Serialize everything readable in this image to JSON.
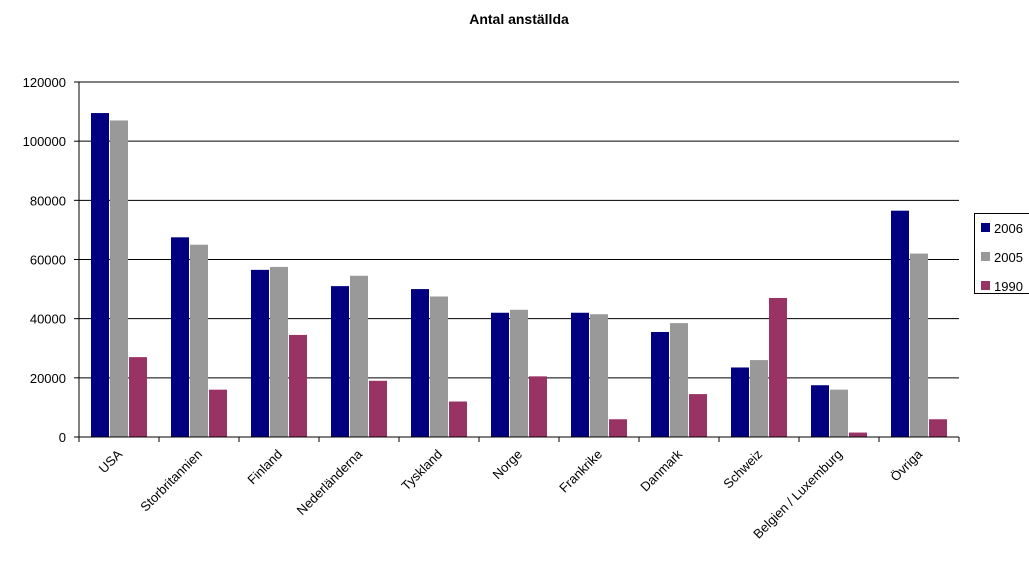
{
  "chart_data": {
    "type": "bar",
    "title": "Antal anställda",
    "xlabel": "",
    "ylabel": "",
    "ylim": [
      0,
      120000
    ],
    "yticks": [
      0,
      20000,
      40000,
      60000,
      80000,
      100000,
      120000
    ],
    "grid": true,
    "legend_position": "right",
    "categories": [
      "USA",
      "Storbritannien",
      "Finland",
      "Nederländerna",
      "Tyskland",
      "Norge",
      "Frankrike",
      "Danmark",
      "Schweiz",
      "Belgien / Luxemburg",
      "Övriga"
    ],
    "series": [
      {
        "name": "2006",
        "color": "#000080",
        "values": [
          109500,
          67500,
          56500,
          51000,
          50000,
          42000,
          42000,
          35500,
          23500,
          17500,
          76500
        ]
      },
      {
        "name": "2005",
        "color": "#999999",
        "values": [
          107000,
          65000,
          57500,
          54500,
          47500,
          43000,
          41500,
          38500,
          26000,
          16000,
          62000
        ]
      },
      {
        "name": "1990",
        "color": "#993366",
        "values": [
          27000,
          16000,
          34500,
          19000,
          12000,
          20500,
          6000,
          14500,
          47000,
          1500,
          6000
        ]
      }
    ]
  }
}
